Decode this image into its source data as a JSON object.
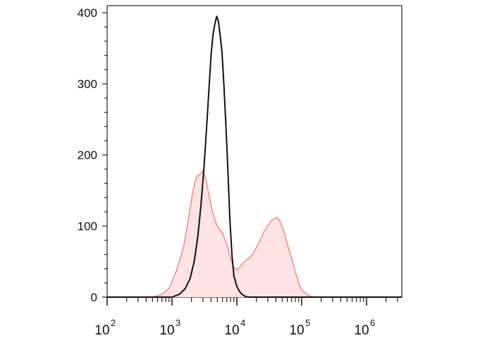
{
  "chart_data": {
    "type": "area",
    "title": "",
    "xlabel": "",
    "ylabel": "",
    "x_scale": "log",
    "xlim": [
      100,
      3500000
    ],
    "ylim": [
      0,
      410
    ],
    "x_tick_labels": [
      {
        "value": 100,
        "base": "10",
        "exp": "2"
      },
      {
        "value": 1000,
        "base": "10",
        "exp": "3"
      },
      {
        "value": 10000,
        "base": "10",
        "exp": "4"
      },
      {
        "value": 100000,
        "base": "10",
        "exp": "5"
      },
      {
        "value": 1000000,
        "base": "10",
        "exp": "6"
      }
    ],
    "y_tick_labels": [
      {
        "value": 0,
        "label": "0"
      },
      {
        "value": 100,
        "label": "100"
      },
      {
        "value": 200,
        "label": "200"
      },
      {
        "value": 300,
        "label": "300"
      },
      {
        "value": 400,
        "label": "400"
      }
    ],
    "grid": false,
    "legend": "none",
    "series": [
      {
        "style": "filled",
        "line_color": "#f08080",
        "fill_color": "#fde3e3",
        "x": [
          100,
          500,
          700,
          900,
          1000,
          1200,
          1500,
          1800,
          2100,
          2400,
          2700,
          3000,
          3300,
          3600,
          3900,
          4200,
          4600,
          5000,
          5500,
          6000,
          7000,
          8000,
          9000,
          10000,
          11000,
          12500,
          14000,
          16000,
          18000,
          20000,
          23000,
          26000,
          30000,
          34000,
          38000,
          42000,
          46000,
          50000,
          55000,
          60000,
          70000,
          80000,
          90000,
          100000,
          120000,
          140000,
          160000,
          200000,
          3500000
        ],
        "y": [
          0,
          0,
          4,
          12,
          22,
          40,
          70,
          110,
          150,
          170,
          172,
          178,
          168,
          150,
          135,
          120,
          108,
          100,
          95,
          90,
          75,
          55,
          42,
          38,
          42,
          48,
          52,
          56,
          62,
          70,
          80,
          92,
          100,
          108,
          110,
          112,
          107,
          98,
          88,
          75,
          55,
          35,
          20,
          10,
          4,
          1,
          0,
          0,
          0
        ]
      },
      {
        "style": "line",
        "line_color": "#111111",
        "x": [
          100,
          1000,
          1300,
          1600,
          1900,
          2200,
          2500,
          2800,
          3100,
          3400,
          3700,
          4000,
          4300,
          4600,
          4900,
          5200,
          5500,
          5900,
          6300,
          6800,
          7300,
          7800,
          8400,
          9000,
          10000,
          11000,
          12000,
          13500,
          15000,
          3500000
        ],
        "y": [
          0,
          0,
          4,
          12,
          26,
          50,
          85,
          130,
          180,
          235,
          290,
          340,
          370,
          385,
          395,
          388,
          370,
          345,
          300,
          240,
          175,
          110,
          60,
          30,
          15,
          8,
          4,
          1,
          0,
          0
        ]
      }
    ]
  }
}
